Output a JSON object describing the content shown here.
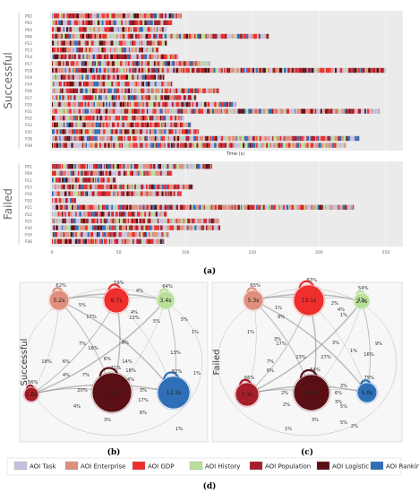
{
  "colors": {
    "Task": "#c8bfde",
    "Enterprise": "#df8f7c",
    "GDP": "#ef2e2e",
    "History": "#b9df9a",
    "Population": "#a61e2a",
    "Logistic": "#5a0f14",
    "Ranking": "#2f6fb8"
  },
  "panel_a": {
    "label": "(a)",
    "xlabel": "Time (s)",
    "xticks": [
      "0",
      "50",
      "100",
      "150",
      "200",
      "250"
    ],
    "groups": [
      {
        "name": "Successful",
        "participants": [
          {
            "id": "P02",
            "dur": 97
          },
          {
            "id": "P03",
            "dur": 90
          },
          {
            "id": "P04",
            "dur": 86
          },
          {
            "id": "P06",
            "dur": 163
          },
          {
            "id": "P12",
            "dur": 86
          },
          {
            "id": "P13",
            "dur": 80
          },
          {
            "id": "P14",
            "dur": 95
          },
          {
            "id": "P17",
            "dur": 118
          },
          {
            "id": "P18",
            "dur": 250
          },
          {
            "id": "P19",
            "dur": 84
          },
          {
            "id": "P24",
            "dur": 90
          },
          {
            "id": "P26",
            "dur": 125
          },
          {
            "id": "P27",
            "dur": 108
          },
          {
            "id": "P29",
            "dur": 138
          },
          {
            "id": "P31",
            "dur": 245
          },
          {
            "id": "P32",
            "dur": 99
          },
          {
            "id": "P33",
            "dur": 104
          },
          {
            "id": "P35",
            "dur": 110
          },
          {
            "id": "P38",
            "dur": 230
          },
          {
            "id": "P39",
            "dur": 220
          }
        ]
      },
      {
        "name": "Failed",
        "participants": [
          {
            "id": "P01",
            "dur": 120
          },
          {
            "id": "P09",
            "dur": 90
          },
          {
            "id": "P11",
            "dur": 48
          },
          {
            "id": "P15",
            "dur": 106
          },
          {
            "id": "P16",
            "dur": 97
          },
          {
            "id": "P20",
            "dur": 18
          },
          {
            "id": "P21",
            "dur": 226
          },
          {
            "id": "P22",
            "dur": 86
          },
          {
            "id": "P25",
            "dur": 125
          },
          {
            "id": "P30",
            "dur": 126
          },
          {
            "id": "P34",
            "dur": 88
          },
          {
            "id": "P36",
            "dur": 84
          }
        ]
      }
    ]
  },
  "chart_data": [
    {
      "type": "transition-graph",
      "label": "(b)",
      "group": "Successful",
      "nodes": [
        {
          "aoi": "Enterprise",
          "text": "5.2s",
          "self": "62%"
        },
        {
          "aoi": "GDP",
          "text": "8.7s",
          "self": "59%"
        },
        {
          "aoi": "History",
          "text": "3.4s",
          "self": "64%"
        },
        {
          "aoi": "Population",
          "text": "1.8s",
          "self": "56%"
        },
        {
          "aoi": "Logistic",
          "text": "11.8s",
          "self": "71%"
        },
        {
          "aoi": "Ranking",
          "text": "12.3s",
          "self": "82%"
        }
      ],
      "edge_labels": [
        "4%",
        "5%",
        "17%",
        "4%",
        "13%",
        "5%",
        "5%",
        "1%",
        "7%",
        "16%",
        "6%",
        "4%",
        "8%",
        "6%",
        "14%",
        "18%",
        "18%",
        "4%",
        "13%",
        "1%",
        "7%",
        "20%",
        "4%",
        "3%",
        "17%",
        "6%",
        "3%",
        "1%"
      ]
    },
    {
      "type": "transition-graph",
      "label": "(c)",
      "group": "Failed",
      "nodes": [
        {
          "aoi": "Enterprise",
          "text": "5.3s",
          "self": "65%"
        },
        {
          "aoi": "GDP",
          "text": "13.1s",
          "self": "63%"
        },
        {
          "aoi": "History",
          "text": "2.4s",
          "self": "54%"
        },
        {
          "aoi": "Population",
          "text": "7.3s",
          "self": "66%"
        },
        {
          "aoi": "Logistic",
          "text": "10.7s",
          "self": "64%"
        },
        {
          "aoi": "Ranking",
          "text": "5.0s",
          "self": "75%"
        }
      ],
      "edge_labels": [
        "2%",
        "1%",
        "9%",
        "3%",
        "4%",
        "1%",
        "3%",
        "17%",
        "1%",
        "16%",
        "9%",
        "1%",
        "7%",
        "23%",
        "27%",
        "1%",
        "6%",
        "2%",
        "2%",
        "3%",
        "6%",
        "3%",
        "5%",
        "5%",
        "3%",
        "2%",
        "1%"
      ]
    }
  ],
  "legend": {
    "label": "(d)",
    "items": [
      {
        "key": "Task",
        "text": "AOI Task"
      },
      {
        "key": "Enterprise",
        "text": "AOI Enterprise"
      },
      {
        "key": "GDP",
        "text": "AOI GDP"
      },
      {
        "key": "History",
        "text": "AOI History"
      },
      {
        "key": "Population",
        "text": "AOI Population"
      },
      {
        "key": "Logistic",
        "text": "AOI Logistic"
      },
      {
        "key": "Ranking",
        "text": "AOI Ranking"
      }
    ]
  }
}
